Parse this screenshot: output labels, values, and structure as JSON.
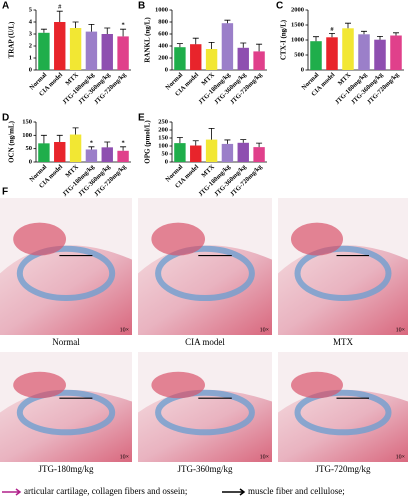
{
  "chart_data": [
    {
      "type": "bar",
      "panel": "A",
      "y_label": "TRAP (U/L)",
      "categories": [
        "Normal",
        "CIA model",
        "MTX",
        "JTG-180mg/kg",
        "JTG-360mg/kg",
        "JTG-720mg/kg"
      ],
      "colors": [
        "#1fae4b",
        "#e8242b",
        "#f2e733",
        "#9b7fc9",
        "#8e4fb0",
        "#e0408b"
      ],
      "values": [
        3.1,
        4.0,
        3.5,
        3.2,
        3.0,
        2.8
      ],
      "errors": [
        0.3,
        0.9,
        0.5,
        0.6,
        0.5,
        0.6
      ],
      "markers": [
        null,
        "#",
        null,
        null,
        null,
        "*"
      ],
      "ylim": [
        0,
        5
      ],
      "yticks": [
        0,
        1,
        2,
        3,
        4,
        5
      ]
    },
    {
      "type": "bar",
      "panel": "B",
      "y_label": "RANKL (ng/L)",
      "categories": [
        "Normal",
        "CIA model",
        "MTX",
        "JTG-180mg/kg",
        "JTG-360mg/kg",
        "JTG-720mg/kg"
      ],
      "colors": [
        "#1fae4b",
        "#e8242b",
        "#f2e733",
        "#9b7fc9",
        "#8e4fb0",
        "#e0408b"
      ],
      "values": [
        380,
        430,
        350,
        780,
        370,
        310
      ],
      "errors": [
        60,
        100,
        110,
        50,
        80,
        120
      ],
      "markers": [
        null,
        null,
        null,
        null,
        null,
        null
      ],
      "ylim": [
        0,
        1000
      ],
      "yticks": [
        0,
        200,
        400,
        600,
        800,
        1000
      ]
    },
    {
      "type": "bar",
      "panel": "C",
      "y_label": "CTX-I (ng/L)",
      "categories": [
        "Normal",
        "CIA model",
        "MTX",
        "JTG-180mg/kg",
        "JTG-360mg/kg",
        "JTG-720mg/kg"
      ],
      "colors": [
        "#1fae4b",
        "#e8242b",
        "#f2e733",
        "#9b7fc9",
        "#8e4fb0",
        "#e0408b"
      ],
      "values": [
        960,
        1090,
        1390,
        1190,
        1010,
        1150
      ],
      "errors": [
        150,
        130,
        170,
        100,
        110,
        90
      ],
      "markers": [
        null,
        "#",
        null,
        null,
        null,
        null
      ],
      "ylim": [
        0,
        2000
      ],
      "yticks": [
        0,
        500,
        1000,
        1500,
        2000
      ]
    },
    {
      "type": "bar",
      "panel": "D",
      "y_label": "OCN (ng/mL)",
      "categories": [
        "Normal",
        "CIA model",
        "MTX",
        "JTG-180mg/kg",
        "JTG-360mg/kg",
        "JTG-720mg/kg"
      ],
      "colors": [
        "#1fae4b",
        "#e8242b",
        "#f2e733",
        "#9b7fc9",
        "#8e4fb0",
        "#e0408b"
      ],
      "values": [
        70,
        75,
        103,
        47,
        55,
        42
      ],
      "errors": [
        30,
        25,
        25,
        10,
        20,
        15
      ],
      "markers": [
        null,
        null,
        null,
        "*",
        null,
        "*"
      ],
      "ylim": [
        0,
        150
      ],
      "yticks": [
        0,
        50,
        100,
        150
      ]
    },
    {
      "type": "bar",
      "panel": "E",
      "y_label": "OPG (pmol/L)",
      "categories": [
        "Normal",
        "CIA model",
        "MTX",
        "JTG-180mg/kg",
        "JTG-360mg/kg",
        "JTG-720mg/kg"
      ],
      "colors": [
        "#1fae4b",
        "#e8242b",
        "#f2e733",
        "#9b7fc9",
        "#8e4fb0",
        "#e0408b"
      ],
      "values": [
        118,
        103,
        140,
        113,
        120,
        93
      ],
      "errors": [
        35,
        30,
        70,
        25,
        20,
        25
      ],
      "markers": [
        null,
        null,
        null,
        null,
        null,
        null
      ],
      "ylim": [
        0,
        250
      ],
      "yticks": [
        0,
        50,
        100,
        150,
        200,
        250
      ]
    }
  ],
  "histology": {
    "panel": "F",
    "images": [
      {
        "caption": "Normal",
        "magnification": "10×"
      },
      {
        "caption": "CIA model",
        "magnification": "10×"
      },
      {
        "caption": "MTX",
        "magnification": "10×"
      },
      {
        "caption": "JTG-180mg/kg",
        "magnification": "10×"
      },
      {
        "caption": "JTG-360mg/kg",
        "magnification": "10×"
      },
      {
        "caption": "JTG-720mg/kg",
        "magnification": "10×"
      }
    ],
    "legend": [
      "articular cartilage, collagen fibers and ossein;",
      "muscle fiber and cellulose;"
    ]
  }
}
